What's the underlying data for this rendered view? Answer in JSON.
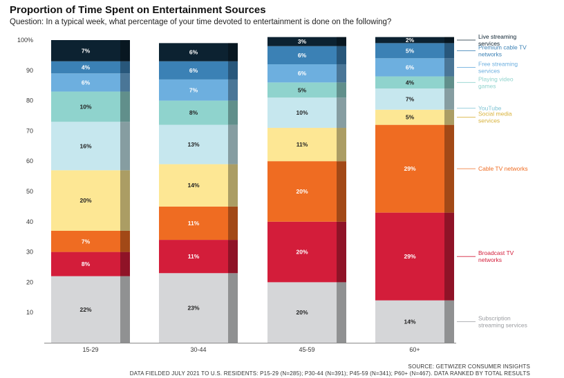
{
  "title": "Proportion of Time Spent on Entertainment Sources",
  "subtitle": "Question: In a typical week, what percentage of your time devoted to entertainment is done on the following?",
  "source_note": "SOURCE: GETWIZER CONSUMER INSIGHTS",
  "fielded_note": "DATA FIELDED JULY 2021 TO U.S. RESIDENTS: P15-29 (N=285); P30-44 (N=391); P45-59 (N=341); P60+ (N=467). DATA RANKED BY TOTAL RESULTS",
  "chart_data": {
    "type": "bar",
    "stacked": true,
    "categories": [
      "15-29",
      "30-44",
      "45-59",
      "60+"
    ],
    "ylim": [
      0,
      100
    ],
    "yticks": [
      10,
      20,
      30,
      40,
      50,
      60,
      70,
      80,
      90,
      100
    ],
    "ytick_labels": [
      "10",
      "20",
      "30",
      "40",
      "50",
      "60",
      "70",
      "80",
      "90",
      "100%"
    ],
    "grid": false,
    "legend_position": "right",
    "series": [
      {
        "name": "Subscription streaming services",
        "legend_lines": [
          "Subscription",
          "streaming services"
        ],
        "color": "#d5d6d8",
        "label_color": "#222222",
        "values": [
          22,
          23,
          20,
          14
        ],
        "labels": [
          "22%",
          "23%",
          "20%",
          "14%"
        ]
      },
      {
        "name": "Broadcast TV networks",
        "legend_lines": [
          "Broadcast TV",
          "networks"
        ],
        "color": "#d31d3a",
        "label_color": "#ffffff",
        "values": [
          8,
          11,
          20,
          29
        ],
        "labels": [
          "8%",
          "11%",
          "20%",
          "29%"
        ]
      },
      {
        "name": "Cable TV networks",
        "legend_lines": [
          "Cable TV networks"
        ],
        "color": "#ef6c22",
        "label_color": "#ffffff",
        "values": [
          7,
          11,
          20,
          29
        ],
        "labels": [
          "7%",
          "11%",
          "20%",
          "29%"
        ]
      },
      {
        "name": "Social media services",
        "legend_lines": [
          "Social media",
          "services"
        ],
        "color": "#fde794",
        "label_color": "#222222",
        "values": [
          20,
          14,
          11,
          5
        ],
        "labels": [
          "20%",
          "14%",
          "11%",
          "5%"
        ]
      },
      {
        "name": "YouTube",
        "legend_lines": [
          "YouTube"
        ],
        "color": "#c6e7ee",
        "label_color": "#222222",
        "values": [
          16,
          13,
          10,
          7
        ],
        "labels": [
          "16%",
          "13%",
          "10%",
          "7%"
        ]
      },
      {
        "name": "Playing video games",
        "legend_lines": [
          "Playing video",
          "games"
        ],
        "color": "#8fd3cd",
        "label_color": "#222222",
        "values": [
          10,
          8,
          5,
          4
        ],
        "labels": [
          "10%",
          "8%",
          "5%",
          "4%"
        ]
      },
      {
        "name": "Free streaming services",
        "legend_lines": [
          "Free streaming",
          "services"
        ],
        "color": "#6dafdf",
        "label_color": "#ffffff",
        "values": [
          6,
          7,
          6,
          6
        ],
        "labels": [
          "6%",
          "7%",
          "6%",
          "6%"
        ]
      },
      {
        "name": "Premium cable TV networks",
        "legend_lines": [
          "Premium cable TV",
          "networks"
        ],
        "color": "#3b81b5",
        "label_color": "#ffffff",
        "values": [
          4,
          6,
          6,
          5
        ],
        "labels": [
          "4%",
          "6%",
          "6%",
          "5%"
        ]
      },
      {
        "name": "Live streaming services",
        "legend_lines": [
          "Live streaming",
          "services"
        ],
        "color": "#0c2231",
        "label_color": "#ffffff",
        "values": [
          7,
          6,
          3,
          2
        ],
        "labels": [
          "7%",
          "6%",
          "3%",
          "2%"
        ]
      }
    ]
  }
}
